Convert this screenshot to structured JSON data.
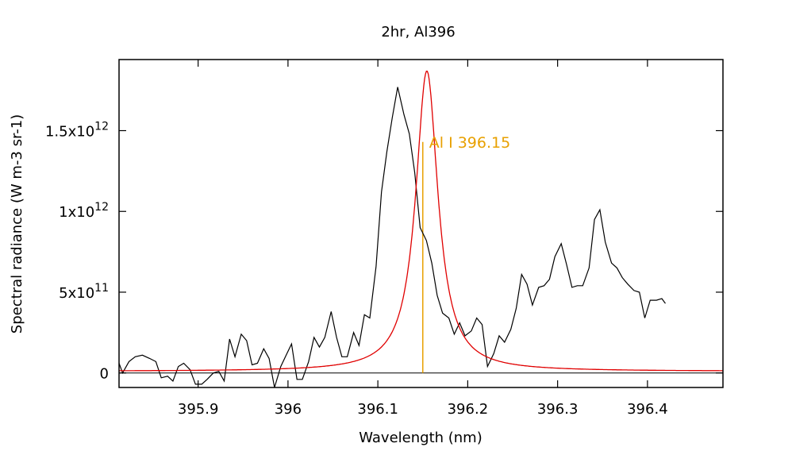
{
  "chart_data": {
    "type": "line",
    "title": "2hr, Al396",
    "xlabel": "Wavelength (nm)",
    "ylabel": "Spectral radiance (W m-3 sr-1)",
    "xlim": [
      395.812,
      396.484
    ],
    "ylim": [
      -90000000000.0,
      1940000000000.0
    ],
    "x_ticks": [
      {
        "value": 395.9,
        "label": "395.9"
      },
      {
        "value": 396.0,
        "label": "396"
      },
      {
        "value": 396.1,
        "label": "396.1"
      },
      {
        "value": 396.2,
        "label": "396.2"
      },
      {
        "value": 396.3,
        "label": "396.3"
      },
      {
        "value": 396.4,
        "label": "396.4"
      }
    ],
    "y_ticks": [
      {
        "value": 0,
        "mantissa": "0",
        "exponent": ""
      },
      {
        "value": 500000000000.0,
        "mantissa": "5x10",
        "exponent": "11"
      },
      {
        "value": 1000000000000.0,
        "mantissa": "1x10",
        "exponent": "12"
      },
      {
        "value": 1500000000000.0,
        "mantissa": "1.5x10",
        "exponent": "12"
      }
    ],
    "grid": false,
    "legend": "none",
    "series": [
      {
        "color": "#000000",
        "points": [
          [
            395.812,
            60000000000.0
          ],
          [
            395.816,
            0.0
          ],
          [
            395.823,
            70000000000.0
          ],
          [
            395.83,
            100000000000.0
          ],
          [
            395.838,
            110000000000.0
          ],
          [
            395.846,
            90000000000.0
          ],
          [
            395.853,
            70000000000.0
          ],
          [
            395.859,
            -30000000000.0
          ],
          [
            395.866,
            -20000000000.0
          ],
          [
            395.872,
            -50000000000.0
          ],
          [
            395.878,
            40000000000.0
          ],
          [
            395.884,
            60000000000.0
          ],
          [
            395.891,
            20000000000.0
          ],
          [
            395.897,
            -70000000000.0
          ],
          [
            395.904,
            -70000000000.0
          ],
          [
            395.91,
            -40000000000.0
          ],
          [
            395.917,
            0.0
          ],
          [
            395.923,
            10000000000.0
          ],
          [
            395.929,
            -50000000000.0
          ],
          [
            395.935,
            210000000000.0
          ],
          [
            395.941,
            100000000000.0
          ],
          [
            395.948,
            240000000000.0
          ],
          [
            395.954,
            200000000000.0
          ],
          [
            395.96,
            50000000000.0
          ],
          [
            395.966,
            60000000000.0
          ],
          [
            395.973,
            150000000000.0
          ],
          [
            395.979,
            90000000000.0
          ],
          [
            395.985,
            -90000000000.0
          ],
          [
            395.992,
            40000000000.0
          ],
          [
            395.998,
            110000000000.0
          ],
          [
            396.004,
            180000000000.0
          ],
          [
            396.01,
            -40000000000.0
          ],
          [
            396.016,
            -40000000000.0
          ],
          [
            396.023,
            70000000000.0
          ],
          [
            396.029,
            220000000000.0
          ],
          [
            396.035,
            160000000000.0
          ],
          [
            396.041,
            220000000000.0
          ],
          [
            396.048,
            380000000000.0
          ],
          [
            396.054,
            220000000000.0
          ],
          [
            396.06,
            100000000000.0
          ],
          [
            396.066,
            100000000000.0
          ],
          [
            396.073,
            250000000000.0
          ],
          [
            396.079,
            170000000000.0
          ],
          [
            396.085,
            360000000000.0
          ],
          [
            396.091,
            340000000000.0
          ],
          [
            396.098,
            660000000000.0
          ],
          [
            396.104,
            1120000000000.0
          ],
          [
            396.11,
            1370000000000.0
          ],
          [
            396.116,
            1580000000000.0
          ],
          [
            396.122,
            1770000000000.0
          ],
          [
            396.129,
            1600000000000.0
          ],
          [
            396.135,
            1480000000000.0
          ],
          [
            396.141,
            1240000000000.0
          ],
          [
            396.147,
            900000000000.0
          ],
          [
            396.154,
            820000000000.0
          ],
          [
            396.16,
            680000000000.0
          ],
          [
            396.166,
            480000000000.0
          ],
          [
            396.172,
            370000000000.0
          ],
          [
            396.179,
            340000000000.0
          ],
          [
            396.185,
            240000000000.0
          ],
          [
            396.191,
            310000000000.0
          ],
          [
            396.197,
            230000000000.0
          ],
          [
            396.204,
            260000000000.0
          ],
          [
            396.21,
            340000000000.0
          ],
          [
            396.216,
            300000000000.0
          ],
          [
            396.222,
            40000000000.0
          ],
          [
            396.229,
            120000000000.0
          ],
          [
            396.235,
            230000000000.0
          ],
          [
            396.241,
            190000000000.0
          ],
          [
            396.248,
            270000000000.0
          ],
          [
            396.254,
            400000000000.0
          ],
          [
            396.26,
            610000000000.0
          ],
          [
            396.266,
            550000000000.0
          ],
          [
            396.272,
            420000000000.0
          ],
          [
            396.279,
            530000000000.0
          ],
          [
            396.285,
            540000000000.0
          ],
          [
            396.291,
            580000000000.0
          ],
          [
            396.297,
            720000000000.0
          ],
          [
            396.304,
            800000000000.0
          ],
          [
            396.31,
            670000000000.0
          ],
          [
            396.316,
            530000000000.0
          ],
          [
            396.322,
            540000000000.0
          ],
          [
            396.328,
            540000000000.0
          ],
          [
            396.335,
            650000000000.0
          ],
          [
            396.341,
            950000000000.0
          ],
          [
            396.347,
            1010000000000.0
          ],
          [
            396.353,
            810000000000.0
          ],
          [
            396.36,
            680000000000.0
          ],
          [
            396.366,
            650000000000.0
          ],
          [
            396.372,
            590000000000.0
          ],
          [
            396.378,
            550000000000.0
          ],
          [
            396.385,
            510000000000.0
          ],
          [
            396.391,
            500000000000.0
          ],
          [
            396.397,
            340000000000.0
          ],
          [
            396.403,
            450000000000.0
          ],
          [
            396.41,
            450000000000.0
          ],
          [
            396.416,
            460000000000.0
          ],
          [
            396.42,
            430000000000.0
          ]
        ]
      },
      {
        "color": "#e00000",
        "model": "lorentzian",
        "center": 396.1545,
        "amplitude": 1870000000000.0,
        "hwhm": 0.015,
        "baseline": 10000000000.0
      }
    ],
    "annotations": [
      {
        "text": "Al I 396.15",
        "x": 396.15,
        "y0": 0,
        "y1": 1430000000000.0,
        "color": "#e8a000"
      }
    ]
  }
}
